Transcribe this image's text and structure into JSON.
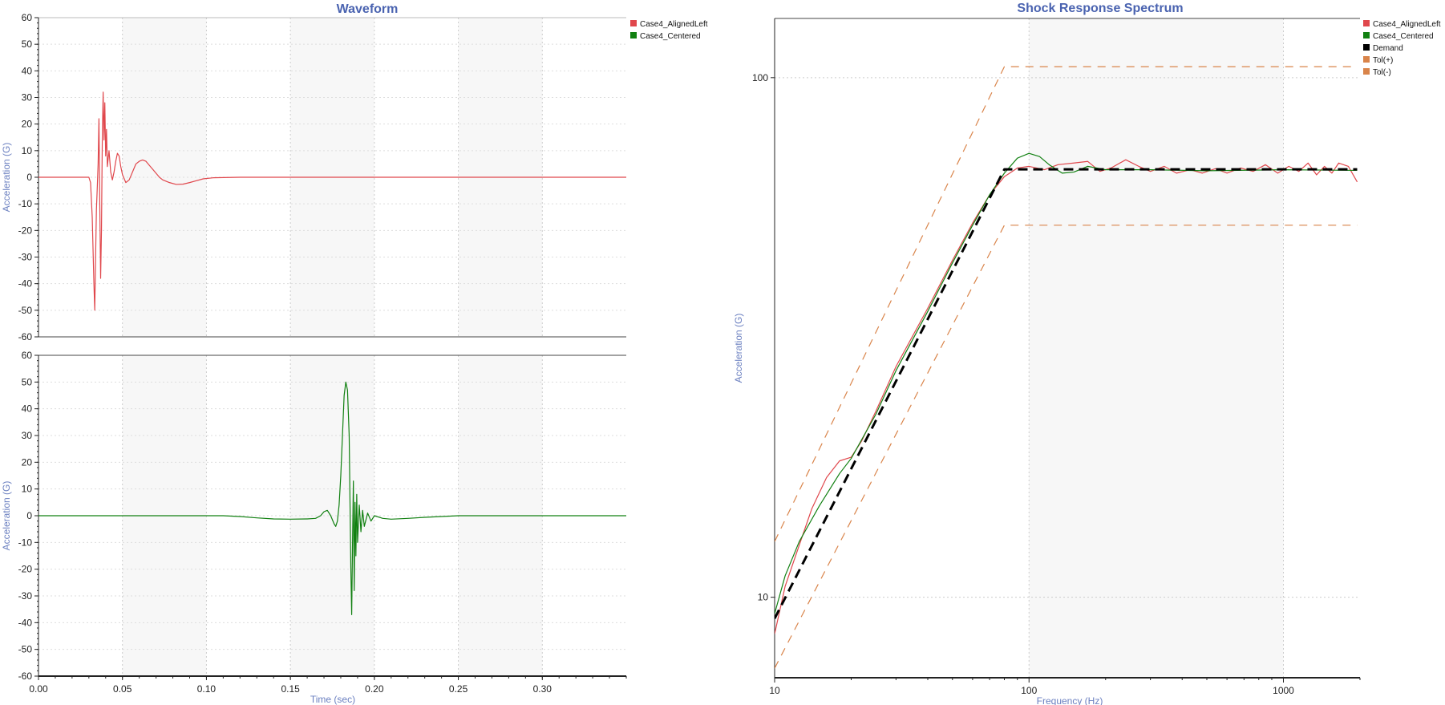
{
  "colors": {
    "aligned": "#e0474c",
    "centered": "#118011",
    "demand": "#000000",
    "tol": "#d9844a",
    "title": "#4a63b0",
    "axis_label": "#6a7fc0",
    "band": "#f7f7f7"
  },
  "chart_data": [
    {
      "type": "line",
      "title": "Waveform",
      "xlabel": "",
      "ylabel": "Acceleration (G)",
      "xlim": [
        0,
        0.35
      ],
      "ylim": [
        -60,
        60
      ],
      "x_ticks": [
        "0.00",
        "0.05",
        "0.10",
        "0.15",
        "0.20",
        "0.25",
        "0.30"
      ],
      "y_ticks": [
        "60",
        "50",
        "40",
        "30",
        "20",
        "10",
        "0",
        "-10",
        "-20",
        "-30",
        "-40",
        "-50",
        "-60"
      ],
      "legend": [
        "Case4_AlignedLeft",
        "Case4_Centered"
      ],
      "legend_position": "right",
      "grid": true,
      "series": [
        {
          "name": "Case4_AlignedLeft",
          "color_key": "aligned",
          "points": [
            [
              0,
              0
            ],
            [
              0.03,
              0
            ],
            [
              0.031,
              -2
            ],
            [
              0.032,
              -15
            ],
            [
              0.033,
              -40
            ],
            [
              0.0335,
              -50
            ],
            [
              0.034,
              -30
            ],
            [
              0.0345,
              -12
            ],
            [
              0.035,
              -4
            ],
            [
              0.0355,
              5
            ],
            [
              0.036,
              22
            ],
            [
              0.0365,
              -10
            ],
            [
              0.037,
              -38
            ],
            [
              0.0375,
              -20
            ],
            [
              0.038,
              15
            ],
            [
              0.0385,
              32
            ],
            [
              0.039,
              14
            ],
            [
              0.0395,
              28
            ],
            [
              0.04,
              8
            ],
            [
              0.0405,
              18
            ],
            [
              0.041,
              4
            ],
            [
              0.042,
              10
            ],
            [
              0.043,
              2
            ],
            [
              0.044,
              -1
            ],
            [
              0.045,
              2
            ],
            [
              0.046,
              6
            ],
            [
              0.047,
              9
            ],
            [
              0.048,
              8
            ],
            [
              0.049,
              4
            ],
            [
              0.05,
              1
            ],
            [
              0.052,
              -2
            ],
            [
              0.054,
              -1
            ],
            [
              0.056,
              2
            ],
            [
              0.058,
              5
            ],
            [
              0.06,
              6
            ],
            [
              0.062,
              6.5
            ],
            [
              0.064,
              6
            ],
            [
              0.066,
              4.5
            ],
            [
              0.068,
              3
            ],
            [
              0.07,
              1.5
            ],
            [
              0.072,
              0
            ],
            [
              0.074,
              -1
            ],
            [
              0.078,
              -2
            ],
            [
              0.082,
              -2.7
            ],
            [
              0.086,
              -2.6
            ],
            [
              0.09,
              -2
            ],
            [
              0.094,
              -1.3
            ],
            [
              0.098,
              -0.6
            ],
            [
              0.104,
              -0.2
            ],
            [
              0.12,
              0
            ],
            [
              0.35,
              0
            ]
          ]
        }
      ]
    },
    {
      "type": "line",
      "title": "",
      "xlabel": "Time (sec)",
      "ylabel": "Acceleration (G)",
      "xlim": [
        0,
        0.35
      ],
      "ylim": [
        -60,
        60
      ],
      "x_ticks": [
        "0.00",
        "0.05",
        "0.10",
        "0.15",
        "0.20",
        "0.25",
        "0.30"
      ],
      "y_ticks": [
        "60",
        "50",
        "40",
        "30",
        "20",
        "10",
        "0",
        "-10",
        "-20",
        "-30",
        "-40",
        "-50",
        "-60"
      ],
      "grid": true,
      "series": [
        {
          "name": "Case4_Centered",
          "color_key": "centered",
          "points": [
            [
              0,
              0
            ],
            [
              0.11,
              0
            ],
            [
              0.12,
              -0.3
            ],
            [
              0.13,
              -0.8
            ],
            [
              0.14,
              -1.2
            ],
            [
              0.15,
              -1.3
            ],
            [
              0.16,
              -1.2
            ],
            [
              0.165,
              -1
            ],
            [
              0.168,
              0
            ],
            [
              0.17,
              1.5
            ],
            [
              0.172,
              2
            ],
            [
              0.174,
              0
            ],
            [
              0.176,
              -3
            ],
            [
              0.177,
              -4
            ],
            [
              0.178,
              -2
            ],
            [
              0.179,
              4
            ],
            [
              0.18,
              15
            ],
            [
              0.181,
              30
            ],
            [
              0.182,
              45
            ],
            [
              0.183,
              50
            ],
            [
              0.184,
              47
            ],
            [
              0.185,
              30
            ],
            [
              0.1855,
              5
            ],
            [
              0.186,
              -20
            ],
            [
              0.1865,
              -37
            ],
            [
              0.187,
              -10
            ],
            [
              0.1875,
              13
            ],
            [
              0.188,
              -28
            ],
            [
              0.1885,
              5
            ],
            [
              0.189,
              -15
            ],
            [
              0.1895,
              8
            ],
            [
              0.19,
              -10
            ],
            [
              0.191,
              4
            ],
            [
              0.192,
              -6
            ],
            [
              0.193,
              2
            ],
            [
              0.194,
              -4
            ],
            [
              0.196,
              1
            ],
            [
              0.198,
              -2
            ],
            [
              0.2,
              0
            ],
            [
              0.205,
              -1
            ],
            [
              0.21,
              -1.3
            ],
            [
              0.22,
              -1
            ],
            [
              0.23,
              -0.6
            ],
            [
              0.24,
              -0.3
            ],
            [
              0.25,
              0
            ],
            [
              0.35,
              0
            ]
          ]
        }
      ]
    },
    {
      "type": "line",
      "title": "Shock Response Spectrum",
      "xlabel": "Frequency (Hz)",
      "ylabel": "Acceleration (G)",
      "x_scale": "log",
      "y_scale": "log",
      "xlim": [
        10,
        2000
      ],
      "ylim": [
        7,
        130
      ],
      "x_ticks": [
        "10",
        "100",
        "1000"
      ],
      "y_ticks": [
        "10",
        "100"
      ],
      "legend": [
        "Case4_AlignedLeft",
        "Case4_Centered",
        "Demand",
        "Tol(+)",
        "Tol(-)"
      ],
      "legend_position": "right",
      "grid": true,
      "series": [
        {
          "name": "Case4_AlignedLeft",
          "color_key": "aligned",
          "points": [
            [
              10,
              8.5
            ],
            [
              11,
              10.5
            ],
            [
              12.5,
              12.6
            ],
            [
              14,
              14.8
            ],
            [
              16,
              17
            ],
            [
              18,
              18.3
            ],
            [
              20,
              18.6
            ],
            [
              22,
              20
            ],
            [
              25,
              22.8
            ],
            [
              30,
              27.8
            ],
            [
              40,
              36
            ],
            [
              50,
              44.5
            ],
            [
              60,
              52.5
            ],
            [
              70,
              59.5
            ],
            [
              80,
              64.5
            ],
            [
              90,
              67
            ],
            [
              100,
              67.5
            ],
            [
              115,
              66.5
            ],
            [
              130,
              68
            ],
            [
              150,
              68.5
            ],
            [
              170,
              69
            ],
            [
              190,
              66
            ],
            [
              210,
              67
            ],
            [
              240,
              69.5
            ],
            [
              270,
              67.5
            ],
            [
              300,
              66
            ],
            [
              340,
              67.5
            ],
            [
              380,
              65.5
            ],
            [
              430,
              66.5
            ],
            [
              480,
              65.5
            ],
            [
              540,
              66.8
            ],
            [
              600,
              65.5
            ],
            [
              680,
              67
            ],
            [
              760,
              66
            ],
            [
              850,
              68
            ],
            [
              950,
              65.5
            ],
            [
              1050,
              67.5
            ],
            [
              1150,
              66
            ],
            [
              1250,
              68.5
            ],
            [
              1350,
              65
            ],
            [
              1450,
              67.5
            ],
            [
              1550,
              65.5
            ],
            [
              1650,
              68.5
            ],
            [
              1800,
              67.5
            ],
            [
              1950,
              63
            ]
          ]
        },
        {
          "name": "Case4_Centered",
          "color_key": "centered",
          "points": [
            [
              10,
              9.3
            ],
            [
              11,
              11
            ],
            [
              12.5,
              12.8
            ],
            [
              15,
              15
            ],
            [
              18,
              17.3
            ],
            [
              20,
              18.5
            ],
            [
              25,
              22.5
            ],
            [
              30,
              27.3
            ],
            [
              40,
              35.5
            ],
            [
              50,
              44
            ],
            [
              60,
              52
            ],
            [
              70,
              59.5
            ],
            [
              80,
              65.5
            ],
            [
              90,
              70
            ],
            [
              100,
              71.5
            ],
            [
              110,
              70.5
            ],
            [
              120,
              68
            ],
            [
              135,
              65.5
            ],
            [
              150,
              65.8
            ],
            [
              170,
              67.5
            ],
            [
              200,
              66.5
            ],
            [
              300,
              66.5
            ],
            [
              500,
              66.2
            ],
            [
              1000,
              66.5
            ],
            [
              1950,
              66.3
            ]
          ]
        },
        {
          "name": "Demand",
          "color_key": "demand",
          "dashed": true,
          "points": [
            [
              10,
              9.1
            ],
            [
              80,
              66.6
            ],
            [
              1950,
              66.6
            ]
          ]
        },
        {
          "name": "Tol(+)",
          "color_key": "tol",
          "dashed": true,
          "points": [
            [
              10,
              12.8
            ],
            [
              80,
              105
            ],
            [
              1950,
              105
            ]
          ]
        },
        {
          "name": "Tol(-)",
          "color_key": "tol",
          "dashed": true,
          "points": [
            [
              10,
              7.3
            ],
            [
              80,
              52
            ],
            [
              1950,
              52
            ]
          ]
        }
      ]
    }
  ]
}
